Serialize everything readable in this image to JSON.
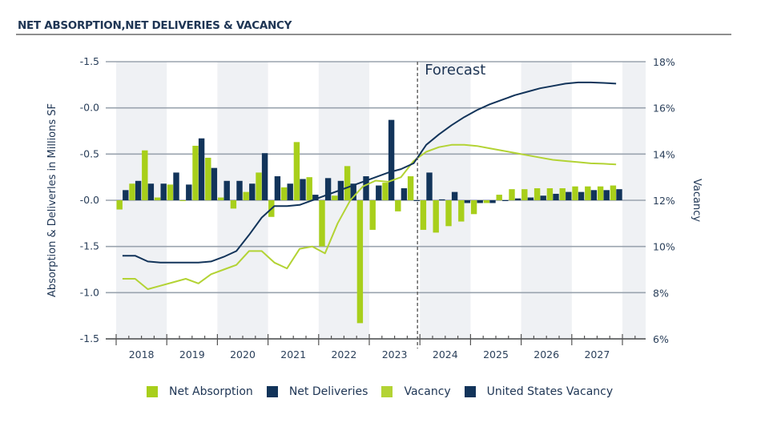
{
  "title": "NET ABSORPTION,NET DELIVERIES & VACANCY",
  "chart_data": {
    "type": "bar",
    "title": "NET ABSORPTION,NET DELIVERIES & VACANCY",
    "ylabel": "Absorption & Deliverles in Millions SF",
    "y2label": "Vacancy",
    "yticks": [
      "-1.5",
      "-0.0",
      "-0.5",
      "-0.0",
      "-1.5",
      "-1.0",
      "-1.5"
    ],
    "ylim": [
      -1.5,
      1.5
    ],
    "y2ticks": [
      "18%",
      "16%",
      "14%",
      "12%",
      "10%",
      "8%",
      "6%"
    ],
    "y2lim": [
      6,
      18
    ],
    "xticks": [
      "2018",
      "2019",
      "2020",
      "2021",
      "2022",
      "2023",
      "2024",
      "2025",
      "2026",
      "2027"
    ],
    "forecast_label": "Forecast",
    "forecast_start": "2024",
    "colors": {
      "absorption": "#a8cf1b",
      "deliveries": "#12345a",
      "vacancy": "#b3d334",
      "us_vacancy": "#12345a",
      "band": "#eff1f4",
      "grid": "#9aa3ae"
    },
    "quarters": [
      "2018Q1",
      "2018Q2",
      "2018Q3",
      "2018Q4",
      "2019Q1",
      "2019Q2",
      "2019Q3",
      "2019Q4",
      "2020Q1",
      "2020Q2",
      "2020Q3",
      "2020Q4",
      "2021Q1",
      "2021Q2",
      "2021Q3",
      "2021Q4",
      "2022Q1",
      "2022Q2",
      "2022Q3",
      "2022Q4",
      "2023Q1",
      "2023Q2",
      "2023Q3",
      "2023Q4",
      "2024Q1",
      "2024Q2",
      "2024Q3",
      "2024Q4",
      "2025Q1",
      "2025Q2",
      "2025Q3",
      "2025Q4",
      "2026Q1",
      "2026Q2",
      "2026Q3",
      "2026Q4",
      "2027Q1",
      "2027Q2",
      "2027Q3",
      "2027Q4"
    ],
    "series": [
      {
        "name": "Net Absorption",
        "type": "bar",
        "axis": "left",
        "values": [
          -0.1,
          0.18,
          0.54,
          0.03,
          0.17,
          0.0,
          0.59,
          0.46,
          0.03,
          -0.09,
          0.09,
          0.3,
          -0.18,
          0.14,
          0.63,
          0.25,
          -0.5,
          0.05,
          0.37,
          -1.33,
          -0.32,
          0.19,
          -0.12,
          0.26,
          -0.32,
          -0.35,
          -0.28,
          -0.23,
          -0.15,
          -0.03,
          0.06,
          0.12,
          0.12,
          0.13,
          0.13,
          0.13,
          0.15,
          0.15,
          0.15,
          0.16
        ]
      },
      {
        "name": "Net Deliveries",
        "type": "bar",
        "axis": "left",
        "values": [
          0.11,
          0.21,
          0.18,
          0.18,
          0.3,
          0.17,
          0.67,
          0.35,
          0.21,
          0.21,
          0.18,
          0.51,
          0.26,
          0.18,
          0.23,
          0.06,
          0.24,
          0.21,
          0.18,
          0.26,
          0.16,
          0.87,
          0.13,
          0.0,
          0.3,
          0.01,
          0.09,
          -0.03,
          -0.03,
          -0.03,
          0.0,
          0.02,
          0.03,
          0.05,
          0.07,
          0.09,
          0.09,
          0.11,
          0.11,
          0.12
        ]
      },
      {
        "name": "Vacancy",
        "type": "line",
        "axis": "right",
        "values": [
          8.6,
          8.6,
          8.15,
          8.3,
          8.45,
          8.6,
          8.4,
          8.8,
          9.0,
          9.2,
          9.8,
          9.8,
          9.3,
          9.05,
          9.9,
          10.0,
          9.7,
          11.0,
          12.0,
          12.6,
          12.85,
          12.8,
          13.0,
          13.7,
          14.1,
          14.3,
          14.4,
          14.4,
          14.35,
          14.25,
          14.15,
          14.05,
          13.95,
          13.85,
          13.75,
          13.7,
          13.65,
          13.6,
          13.58,
          13.55
        ]
      },
      {
        "name": "United States Vacancy",
        "type": "line",
        "axis": "right",
        "values": [
          9.6,
          9.6,
          9.35,
          9.3,
          9.3,
          9.3,
          9.3,
          9.35,
          9.55,
          9.8,
          10.5,
          11.25,
          11.75,
          11.75,
          11.8,
          12.0,
          12.2,
          12.4,
          12.6,
          12.8,
          13.0,
          13.2,
          13.35,
          13.6,
          14.4,
          14.85,
          15.25,
          15.6,
          15.9,
          16.15,
          16.35,
          16.55,
          16.7,
          16.85,
          16.95,
          17.05,
          17.1,
          17.1,
          17.08,
          17.05
        ]
      }
    ],
    "legend": [
      "Net Absorption",
      "Net Deliveries",
      "Vacancy",
      "United States Vacancy"
    ],
    "legend_position": "bottom",
    "grid": true
  }
}
